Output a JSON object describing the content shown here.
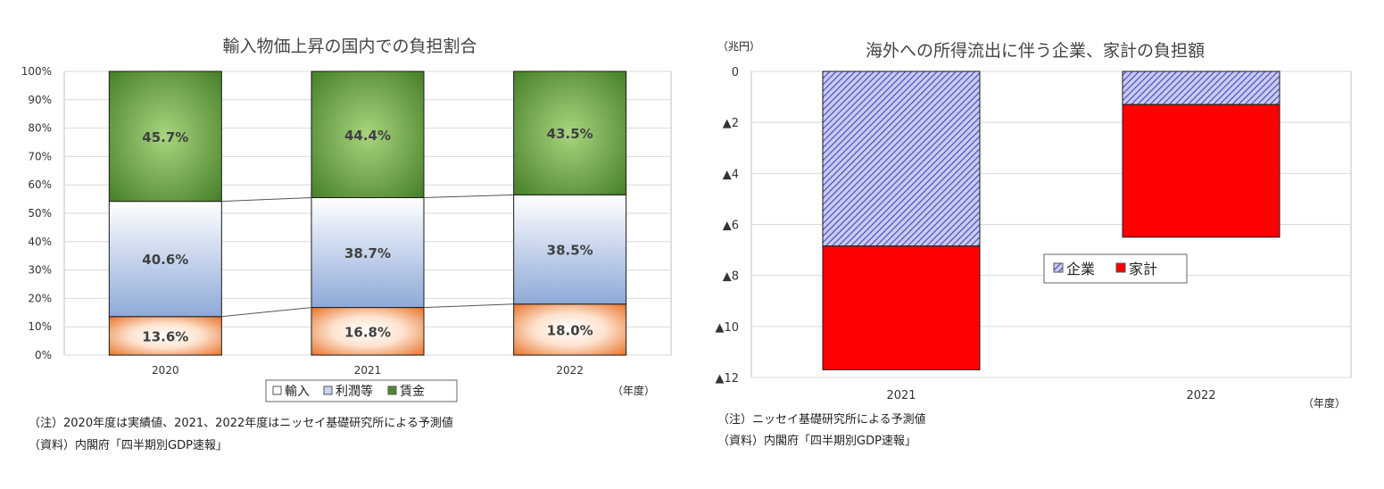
{
  "chart_data": [
    {
      "type": "bar",
      "stacked": true,
      "title": "輸入物価上昇の国内での負担割合",
      "categories": [
        "2020",
        "2021",
        "2022"
      ],
      "x_unit": "（年度）",
      "series": [
        {
          "name": "輸入",
          "values": [
            13.6,
            16.8,
            18.0
          ],
          "labels": [
            "13.6%",
            "16.8%",
            "18.0%"
          ],
          "color": "#e8742a"
        },
        {
          "name": "利潤等",
          "values": [
            40.6,
            38.7,
            38.5
          ],
          "labels": [
            "40.6%",
            "38.7%",
            "38.5%"
          ],
          "color": "#8ea9d8"
        },
        {
          "name": "賃金",
          "values": [
            45.7,
            44.4,
            43.5
          ],
          "labels": [
            "45.7%",
            "44.4%",
            "43.5%"
          ],
          "color": "#4f8a2f"
        }
      ],
      "ylim": [
        0,
        100
      ],
      "yticks": [
        "0%",
        "10%",
        "20%",
        "30%",
        "40%",
        "50%",
        "60%",
        "70%",
        "80%",
        "90%",
        "100%"
      ],
      "grid": true,
      "legend_position": "bottom",
      "notes": [
        "（注）2020年度は実績値、2021、2022年度はニッセイ基礎研究所による予測値",
        "（資料）内閣府「四半期別GDP速報」"
      ]
    },
    {
      "type": "bar",
      "stacked": true,
      "title": "海外への所得流出に伴う企業、家計の負担額",
      "y_unit": "（兆円）",
      "x_unit": "（年度）",
      "categories": [
        "2021",
        "2022"
      ],
      "series": [
        {
          "name": "企業",
          "values": [
            -6.85,
            -1.3
          ],
          "color": "#5a5fc8"
        },
        {
          "name": "家計",
          "values": [
            -4.85,
            -5.2
          ],
          "color": "#ff0000"
        }
      ],
      "ylim": [
        -12,
        0
      ],
      "yticks": [
        "0",
        "▲2",
        "▲4",
        "▲6",
        "▲8",
        "▲10",
        "▲12"
      ],
      "grid": true,
      "legend_position": "center-right",
      "notes": [
        "（注）ニッセイ基礎研究所による予測値",
        "（資料）内閣府「四半期別GDP速報」"
      ]
    }
  ]
}
